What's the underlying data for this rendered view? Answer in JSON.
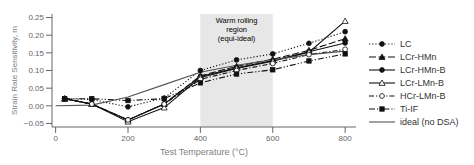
{
  "chart_data": {
    "type": "line",
    "xlabel": "Test Temperature (°C)",
    "ylabel": "Strain Rate Sensitivity, m",
    "xlim": [
      -10,
      830
    ],
    "ylim": [
      -0.06,
      0.26
    ],
    "xticks": [
      0,
      200,
      400,
      600,
      800
    ],
    "yticks": [
      {
        "value": -0.05,
        "label": "−0.05"
      },
      {
        "value": 0,
        "label": "0.00"
      },
      0.05,
      {
        "value": 0.1,
        "label": "0.10"
      },
      0.15,
      {
        "value": 0.2,
        "label": "0.20"
      },
      0.25
    ],
    "grid": false,
    "legend": "right",
    "annotations": [
      {
        "text": "Warm rolling\nregion\n(equi-ideal)",
        "x_range": [
          400,
          600
        ],
        "color": "#dddddd"
      }
    ],
    "series": [
      {
        "name": "LC",
        "color": "#111111",
        "line_style": "dotted",
        "marker": "circle",
        "x": [
          25,
          100,
          200,
          300,
          400,
          500,
          600,
          700,
          800
        ],
        "values": [
          0.02,
          0.018,
          -0.003,
          0.022,
          0.1,
          0.13,
          0.147,
          0.177,
          0.21
        ]
      },
      {
        "name": "LCr-HMn",
        "color": "#111111",
        "line_style": "longdash",
        "marker": "triangle",
        "x": [
          25,
          100,
          200,
          300,
          400,
          500,
          600,
          700,
          800
        ],
        "values": [
          0.02,
          0.005,
          -0.04,
          0.005,
          0.085,
          0.112,
          0.132,
          0.157,
          0.19
        ]
      },
      {
        "name": "LCr-HMn-B",
        "color": "#111111",
        "line_style": "solid",
        "marker": "circle",
        "x": [
          25,
          100,
          200,
          300,
          400,
          500,
          600,
          700,
          800
        ],
        "values": [
          0.02,
          0.005,
          -0.04,
          0.005,
          0.083,
          0.108,
          0.128,
          0.153,
          0.178
        ]
      },
      {
        "name": "LCr-LMn-B",
        "color": "#111111",
        "line_style": "solid",
        "marker": "triangle-open",
        "x": [
          25,
          100,
          200,
          300,
          400,
          500,
          600,
          700,
          800
        ],
        "values": [
          0.02,
          0.005,
          -0.045,
          -0.005,
          0.08,
          0.106,
          0.126,
          0.152,
          0.24
        ]
      },
      {
        "name": "HCr-LMn-B",
        "color": "#111111",
        "line_style": "dashdot",
        "marker": "circle-open",
        "x": [
          25,
          100,
          200,
          300,
          400,
          500,
          600,
          700,
          800
        ],
        "values": [
          0.02,
          0.005,
          -0.04,
          0.005,
          0.075,
          0.1,
          0.12,
          0.145,
          0.16
        ]
      },
      {
        "name": "Ti-IF",
        "color": "#111111",
        "line_style": "dashdotdot",
        "marker": "square",
        "x": [
          25,
          100,
          200,
          300,
          400,
          500,
          600,
          700,
          800
        ],
        "values": [
          0.02,
          0.02,
          0.015,
          0.02,
          0.065,
          0.09,
          0.102,
          0.127,
          0.147
        ]
      },
      {
        "name": "ideal (no DSA)",
        "color": "#555555",
        "line_style": "solid",
        "marker": "none",
        "x": [
          0,
          100,
          200,
          300,
          400,
          500,
          600,
          700,
          800
        ],
        "values": [
          0.0,
          0.002,
          0.025,
          0.06,
          0.095,
          0.115,
          0.13,
          0.145,
          0.155
        ]
      }
    ]
  }
}
